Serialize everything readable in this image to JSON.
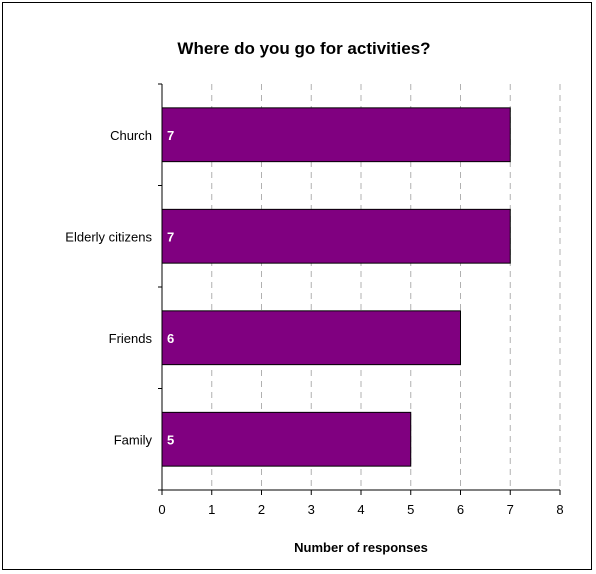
{
  "chart_data": {
    "type": "bar",
    "orientation": "horizontal",
    "title": "Where do you go for activities?",
    "xlabel": "Number of responses",
    "ylabel": "",
    "categories": [
      "Church",
      "Elderly citizens",
      "Friends",
      "Family"
    ],
    "values": [
      7,
      7,
      6,
      5
    ],
    "xlim": [
      0,
      8
    ],
    "xticks": [
      "0",
      "1",
      "2",
      "3",
      "4",
      "5",
      "6",
      "7",
      "8"
    ],
    "grid": "vertical dashed",
    "legend": "none",
    "data_labels": true,
    "colors": {
      "bar_fill": "#800080",
      "bar_stroke": "#000000",
      "grid": "#b0b0b0",
      "data_label": "#ffffff"
    }
  }
}
